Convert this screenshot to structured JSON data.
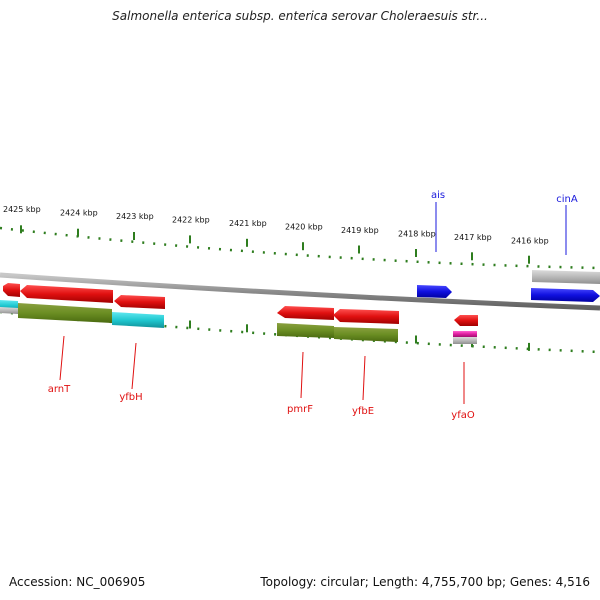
{
  "title": "Salmonella enterica subsp. enterica serovar Choleraesuis str...",
  "footer": {
    "accession": "Accession: NC_006905",
    "genome_info": "Topology: circular; Length: 4,755,700 bp; Genes: 4,516"
  },
  "kbp_labels": [
    "2425 kbp",
    "2424 kbp",
    "2423 kbp",
    "2422 kbp",
    "2421 kbp",
    "2420 kbp",
    "2419 kbp",
    "2418 kbp",
    "2417 kbp",
    "2416 kbp"
  ],
  "genes": {
    "forward": [
      {
        "name": "ais",
        "color": "#1a1adc"
      },
      {
        "name": "cinA",
        "color": "#1a1adc"
      }
    ],
    "reverse": [
      {
        "name": "arnT",
        "color": "#e01010"
      },
      {
        "name": "yfbH",
        "color": "#e01010"
      },
      {
        "name": "pmrF",
        "color": "#e01010"
      },
      {
        "name": "yfbE",
        "color": "#e01010"
      },
      {
        "name": "yfaO",
        "color": "#e01010"
      }
    ]
  },
  "colors": {
    "forward_strand": "#1a1adc",
    "reverse_strand": "#e01010",
    "backbone": "#8c8c8c",
    "ticks": "#2e7d1e",
    "cog_olive": "#6b8e23",
    "cog_cyan": "#20c8d0",
    "cog_magenta": "#e020a0",
    "cog_gray": "#b0b0b0"
  }
}
